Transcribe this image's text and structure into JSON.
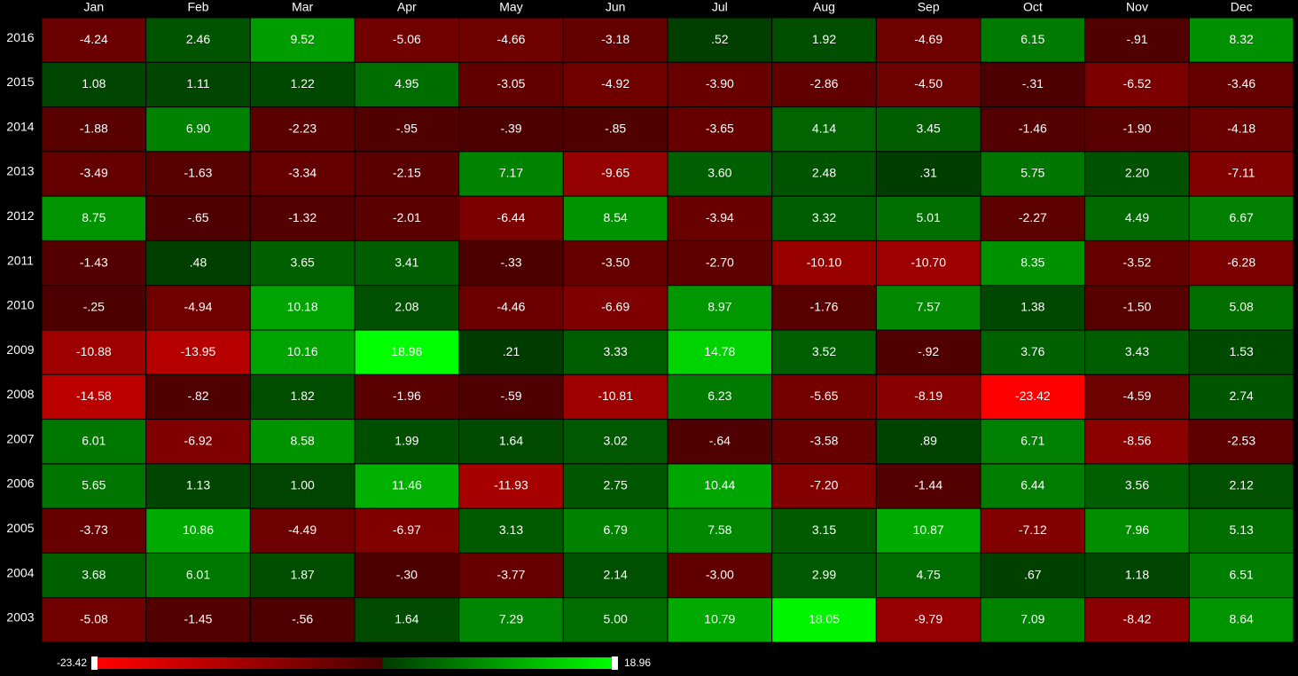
{
  "chart_data": {
    "type": "heatmap",
    "x": [
      "Jan",
      "Feb",
      "Mar",
      "Apr",
      "May",
      "Jun",
      "Jul",
      "Aug",
      "Sep",
      "Oct",
      "Nov",
      "Dec"
    ],
    "y": [
      "2016",
      "2015",
      "2014",
      "2013",
      "2012",
      "2011",
      "2010",
      "2009",
      "2008",
      "2007",
      "2006",
      "2005",
      "2004",
      "2003"
    ],
    "values": [
      [
        -4.24,
        2.46,
        9.52,
        -5.06,
        -4.66,
        -3.18,
        0.52,
        1.92,
        -4.69,
        6.15,
        -0.91,
        8.32
      ],
      [
        1.08,
        1.11,
        1.22,
        4.95,
        -3.05,
        -4.92,
        -3.9,
        -2.86,
        -4.5,
        -0.31,
        -6.52,
        -3.46
      ],
      [
        -1.88,
        6.9,
        -2.23,
        -0.95,
        -0.39,
        -0.85,
        -3.65,
        4.14,
        3.45,
        -1.46,
        -1.9,
        -4.18
      ],
      [
        -3.49,
        -1.63,
        -3.34,
        -2.15,
        7.17,
        -9.65,
        3.6,
        2.48,
        0.31,
        5.75,
        2.2,
        -7.11
      ],
      [
        8.75,
        -0.65,
        -1.32,
        -2.01,
        -6.44,
        8.54,
        -3.94,
        3.32,
        5.01,
        -2.27,
        4.49,
        6.67
      ],
      [
        -1.43,
        0.48,
        3.65,
        3.41,
        -0.33,
        -3.5,
        -2.7,
        -10.1,
        -10.7,
        8.35,
        -3.52,
        -6.28
      ],
      [
        -0.25,
        -4.94,
        10.18,
        2.08,
        -4.46,
        -6.69,
        8.97,
        -1.76,
        7.57,
        1.38,
        -1.5,
        5.08
      ],
      [
        -10.88,
        -13.95,
        10.16,
        18.96,
        0.21,
        3.33,
        14.78,
        3.52,
        -0.92,
        3.76,
        3.43,
        1.53
      ],
      [
        -14.58,
        -0.82,
        1.82,
        -1.96,
        -0.59,
        -10.81,
        6.23,
        -5.65,
        -8.19,
        -23.42,
        -4.59,
        2.74
      ],
      [
        6.01,
        -6.92,
        8.58,
        1.99,
        1.64,
        3.02,
        -0.64,
        -3.58,
        0.89,
        6.71,
        -8.56,
        -2.53
      ],
      [
        5.65,
        1.13,
        1.0,
        11.46,
        -11.93,
        2.75,
        10.44,
        -7.2,
        -1.44,
        6.44,
        3.56,
        2.12
      ],
      [
        -3.73,
        10.86,
        -4.49,
        -6.97,
        3.13,
        6.79,
        7.58,
        3.15,
        10.87,
        -7.12,
        7.96,
        5.13
      ],
      [
        3.68,
        6.01,
        1.87,
        -0.3,
        -3.77,
        2.14,
        -3.0,
        2.99,
        4.75,
        0.67,
        1.18,
        6.51
      ],
      [
        -5.08,
        -1.45,
        -0.56,
        1.64,
        7.29,
        5.0,
        10.79,
        18.05,
        -9.79,
        7.09,
        -8.42,
        8.64
      ]
    ],
    "value_labels": [
      [
        "-4.24",
        "2.46",
        "9.52",
        "-5.06",
        "-4.66",
        "-3.18",
        ".52",
        "1.92",
        "-4.69",
        "6.15",
        "-.91",
        "8.32"
      ],
      [
        "1.08",
        "1.11",
        "1.22",
        "4.95",
        "-3.05",
        "-4.92",
        "-3.90",
        "-2.86",
        "-4.50",
        "-.31",
        "-6.52",
        "-3.46"
      ],
      [
        "-1.88",
        "6.90",
        "-2.23",
        "-.95",
        "-.39",
        "-.85",
        "-3.65",
        "4.14",
        "3.45",
        "-1.46",
        "-1.90",
        "-4.18"
      ],
      [
        "-3.49",
        "-1.63",
        "-3.34",
        "-2.15",
        "7.17",
        "-9.65",
        "3.60",
        "2.48",
        ".31",
        "5.75",
        "2.20",
        "-7.11"
      ],
      [
        "8.75",
        "-.65",
        "-1.32",
        "-2.01",
        "-6.44",
        "8.54",
        "-3.94",
        "3.32",
        "5.01",
        "-2.27",
        "4.49",
        "6.67"
      ],
      [
        "-1.43",
        ".48",
        "3.65",
        "3.41",
        "-.33",
        "-3.50",
        "-2.70",
        "-10.10",
        "-10.70",
        "8.35",
        "-3.52",
        "-6.28"
      ],
      [
        "-.25",
        "-4.94",
        "10.18",
        "2.08",
        "-4.46",
        "-6.69",
        "8.97",
        "-1.76",
        "7.57",
        "1.38",
        "-1.50",
        "5.08"
      ],
      [
        "-10.88",
        "-13.95",
        "10.16",
        "18.96",
        ".21",
        "3.33",
        "14.78",
        "3.52",
        "-.92",
        "3.76",
        "3.43",
        "1.53"
      ],
      [
        "-14.58",
        "-.82",
        "1.82",
        "-1.96",
        "-.59",
        "-10.81",
        "6.23",
        "-5.65",
        "-8.19",
        "-23.42",
        "-4.59",
        "2.74"
      ],
      [
        "6.01",
        "-6.92",
        "8.58",
        "1.99",
        "1.64",
        "3.02",
        "-.64",
        "-3.58",
        ".89",
        "6.71",
        "-8.56",
        "-2.53"
      ],
      [
        "5.65",
        "1.13",
        "1.00",
        "11.46",
        "-11.93",
        "2.75",
        "10.44",
        "-7.20",
        "-1.44",
        "6.44",
        "3.56",
        "2.12"
      ],
      [
        "-3.73",
        "10.86",
        "-4.49",
        "-6.97",
        "3.13",
        "6.79",
        "7.58",
        "3.15",
        "10.87",
        "-7.12",
        "7.96",
        "5.13"
      ],
      [
        "3.68",
        "6.01",
        "1.87",
        "-.30",
        "-3.77",
        "2.14",
        "-3.00",
        "2.99",
        "4.75",
        ".67",
        "1.18",
        "6.51"
      ],
      [
        "-5.08",
        "-1.45",
        "-.56",
        "1.64",
        "7.29",
        "5.00",
        "10.79",
        "18.05",
        "-9.79",
        "7.09",
        "-8.42",
        "8.64"
      ]
    ],
    "zlim": [
      -23.42,
      18.96
    ],
    "colors": [
      "#ff0000",
      "#4a0000",
      "#003a00",
      "#00ff00"
    ]
  }
}
